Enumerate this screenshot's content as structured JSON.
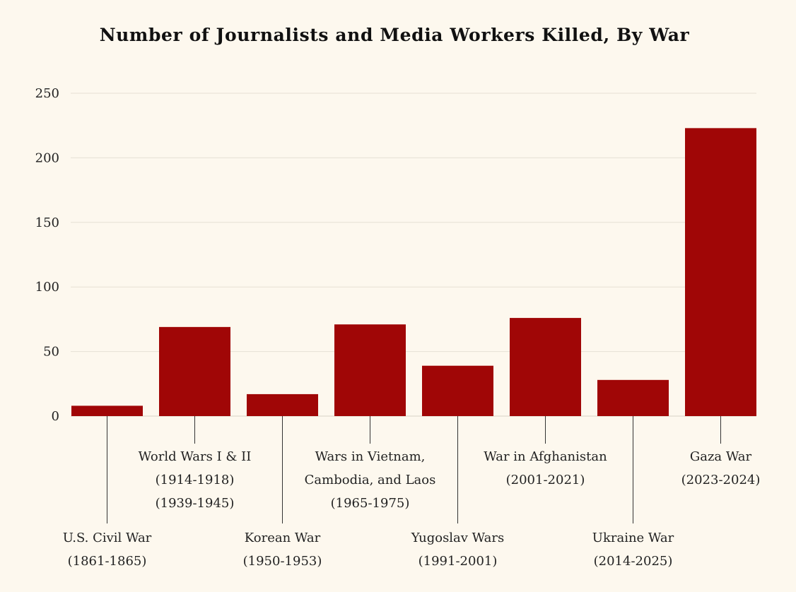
{
  "chart_data": {
    "type": "bar",
    "title": "Number of Journalists and Media Workers Killed, By War",
    "xlabel": "",
    "ylabel": "",
    "ylim": [
      0,
      250
    ],
    "yticks": [
      0,
      50,
      100,
      150,
      200,
      250
    ],
    "grid": true,
    "bar_color": "#a00606",
    "categories": [
      [
        "U.S. Civil War",
        "(1861-1865)"
      ],
      [
        "World Wars I & II",
        "(1914-1918)",
        "(1939-1945)"
      ],
      [
        "Korean War",
        "(1950-1953)"
      ],
      [
        "Wars in Vietnam,",
        "Cambodia, and Laos",
        "(1965-1975)"
      ],
      [
        "Yugoslav Wars",
        "(1991-2001)"
      ],
      [
        "War in Afghanistan",
        "(2001-2021)"
      ],
      [
        "Ukraine War",
        "(2014-2025)"
      ],
      [
        "Gaza War",
        "(2023-2024)"
      ]
    ],
    "values": [
      8,
      69,
      17,
      71,
      39,
      76,
      28,
      223
    ]
  }
}
